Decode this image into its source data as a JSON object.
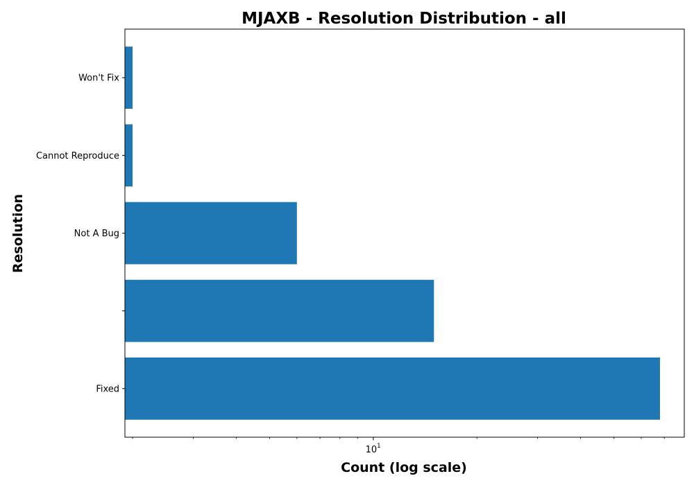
{
  "chart_data": {
    "type": "bar",
    "orientation": "horizontal",
    "title": "MJAXB - Resolution Distribution - all",
    "xlabel": "Count (log scale)",
    "ylabel": "Resolution",
    "x_scale": "log",
    "xlim": [
      1.9,
      80
    ],
    "x_major_ticks": [
      {
        "value": 10,
        "base": "10",
        "exponent": "1"
      }
    ],
    "x_minor_ticks": [
      2,
      3,
      4,
      5,
      6,
      7,
      8,
      9,
      20,
      30,
      40,
      50,
      60,
      70
    ],
    "categories": [
      "Fixed",
      "",
      "Not A Bug",
      "Cannot Reproduce",
      "Won't Fix"
    ],
    "values": [
      68,
      15,
      6,
      2,
      2
    ],
    "bar_color": "#1f77b4",
    "grid": false,
    "legend": "none"
  }
}
